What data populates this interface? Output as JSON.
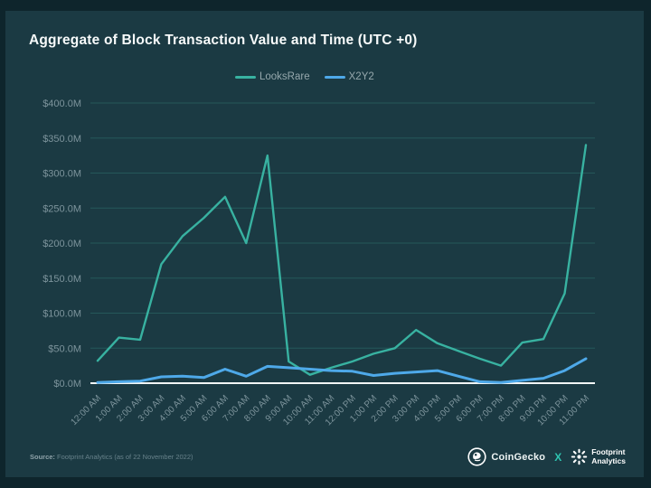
{
  "title": "Aggregate of Block Transaction Value and Time (UTC +0)",
  "colors": {
    "background_slide": "#1b3a43",
    "background_outer": "#0e252c",
    "looksrare_line": "#38b2a1",
    "x2y2_line": "#4ea9e9",
    "grid_line": "rgba(62,160,145,0.30)",
    "zero_axis_line": "#f2f6f6",
    "axis_label": "#7d949c",
    "accent_x": "#2ec4b0"
  },
  "chart_data": {
    "type": "line",
    "title": "Aggregate of Block Transaction Value and Time (UTC +0)",
    "unit": "USD millions",
    "grid": "horizontal",
    "legend_position": "top-center",
    "ylim": [
      0,
      400
    ],
    "x": [
      "12:00 AM",
      "1:00 AM",
      "2:00 AM",
      "3:00 AM",
      "4:00 AM",
      "5:00 AM",
      "6:00 AM",
      "7:00 AM",
      "8:00 AM",
      "9:00 AM",
      "10:00 AM",
      "11:00 AM",
      "12:00 PM",
      "1:00 PM",
      "2:00 PM",
      "3:00 PM",
      "4:00 PM",
      "5:00 PM",
      "6:00 PM",
      "7:00 PM",
      "8:00 PM",
      "9:00 PM",
      "10:00 PM",
      "11:00 PM"
    ],
    "y_ticks": [
      "$400.0M",
      "$350.0M",
      "$300.0M",
      "$250.0M",
      "$200.0M",
      "$150.0M",
      "$100.0M",
      "$50.0M",
      "$0.0M"
    ],
    "y_tick_values": [
      400,
      350,
      300,
      250,
      200,
      150,
      100,
      50,
      0
    ],
    "series": [
      {
        "name": "LooksRare",
        "color": "#38b2a1",
        "values": [
          32,
          65,
          62,
          170,
          210,
          236,
          266,
          200,
          325,
          31,
          12,
          22,
          31,
          42,
          50,
          76,
          57,
          46,
          35,
          25,
          58,
          63,
          128,
          340
        ]
      },
      {
        "name": "X2Y2",
        "color": "#4ea9e9",
        "values": [
          1,
          2,
          3,
          9,
          10,
          8,
          20,
          10,
          24,
          22,
          20,
          18,
          17,
          11,
          14,
          16,
          18,
          10,
          2,
          1,
          4,
          7,
          18,
          35
        ]
      }
    ]
  },
  "footer": {
    "source_label": "Source:",
    "source_text": " Footprint Analytics (as of 22 November 2022)",
    "coingecko_label": "CoinGecko",
    "separator": "X",
    "footprint_line1": "Footprint",
    "footprint_line2": "Analytics"
  }
}
